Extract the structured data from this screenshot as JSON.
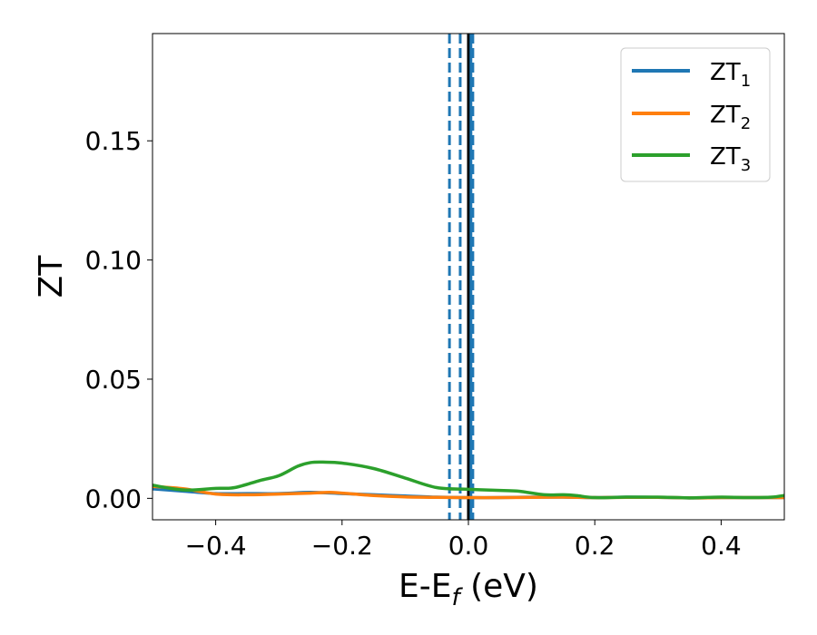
{
  "chart_data": {
    "type": "line",
    "title": "",
    "xlabel": "E-E",
    "xlabel_sub": "f",
    "xlabel_unit": " (eV)",
    "ylabel": "ZT",
    "xlim": [
      -0.5,
      0.5
    ],
    "ylim": [
      -0.009,
      0.195
    ],
    "x_ticks": [
      -0.4,
      -0.2,
      0.0,
      0.2,
      0.4
    ],
    "x_tick_labels": [
      "−0.4",
      "−0.2",
      "0.0",
      "0.2",
      "0.4"
    ],
    "y_ticks": [
      0.0,
      0.05,
      0.1,
      0.15
    ],
    "y_tick_labels": [
      "0.00",
      "0.05",
      "0.10",
      "0.15"
    ],
    "grid": false,
    "legend_position": "top-right",
    "series": [
      {
        "name": "ZT",
        "name_sub": "1",
        "color": "#1f77b4",
        "x": [
          -0.5,
          -0.45,
          -0.4,
          -0.35,
          -0.3,
          -0.25,
          -0.2,
          -0.15,
          -0.1,
          -0.05,
          0.0,
          0.05,
          0.1,
          0.15,
          0.2,
          0.25,
          0.3,
          0.35,
          0.4,
          0.45,
          0.5
        ],
        "y": [
          0.004,
          0.003,
          0.002,
          0.002,
          0.002,
          0.0025,
          0.002,
          0.0015,
          0.001,
          0.0005,
          0.0003,
          0.0003,
          0.0005,
          0.0005,
          0.0003,
          0.0005,
          0.0004,
          0.0002,
          0.0003,
          0.0003,
          0.0003
        ]
      },
      {
        "name": "ZT",
        "name_sub": "2",
        "color": "#ff7f0e",
        "x": [
          -0.5,
          -0.45,
          -0.4,
          -0.35,
          -0.3,
          -0.25,
          -0.22,
          -0.2,
          -0.15,
          -0.1,
          -0.05,
          0.0,
          0.05,
          0.1,
          0.15,
          0.2,
          0.25,
          0.3,
          0.35,
          0.4,
          0.45,
          0.5
        ],
        "y": [
          0.005,
          0.004,
          0.0018,
          0.0015,
          0.0018,
          0.0022,
          0.0025,
          0.0022,
          0.0012,
          0.0006,
          0.0004,
          0.0003,
          0.0003,
          0.0004,
          0.0005,
          0.0003,
          0.0004,
          0.0004,
          0.0002,
          0.0003,
          0.0003,
          0.0003
        ]
      },
      {
        "name": "ZT",
        "name_sub": "3",
        "color": "#2ca02c",
        "x": [
          -0.5,
          -0.45,
          -0.4,
          -0.37,
          -0.33,
          -0.3,
          -0.27,
          -0.25,
          -0.23,
          -0.2,
          -0.15,
          -0.1,
          -0.05,
          0.0,
          0.05,
          0.08,
          0.12,
          0.15,
          0.17,
          0.2,
          0.25,
          0.3,
          0.35,
          0.4,
          0.45,
          0.48,
          0.5
        ],
        "y": [
          0.0055,
          0.0035,
          0.0042,
          0.0045,
          0.0075,
          0.0095,
          0.0135,
          0.015,
          0.0152,
          0.0148,
          0.0125,
          0.0085,
          0.0045,
          0.0038,
          0.0033,
          0.003,
          0.0015,
          0.0015,
          0.0012,
          0.0003,
          0.0005,
          0.0005,
          0.0002,
          0.0005,
          0.0003,
          0.0005,
          0.0012
        ]
      }
    ],
    "vertical_lines": [
      {
        "x": -0.03,
        "color": "#1f77b4",
        "style": "dashed"
      },
      {
        "x": -0.013,
        "color": "#1f77b4",
        "style": "dashed"
      },
      {
        "x": 0.007,
        "color": "#1f77b4",
        "style": "dashed"
      },
      {
        "x": 0.0,
        "color": "#000000",
        "style": "solid"
      },
      {
        "x": 0.004,
        "color": "#1f77b4",
        "style": "solid"
      }
    ]
  }
}
